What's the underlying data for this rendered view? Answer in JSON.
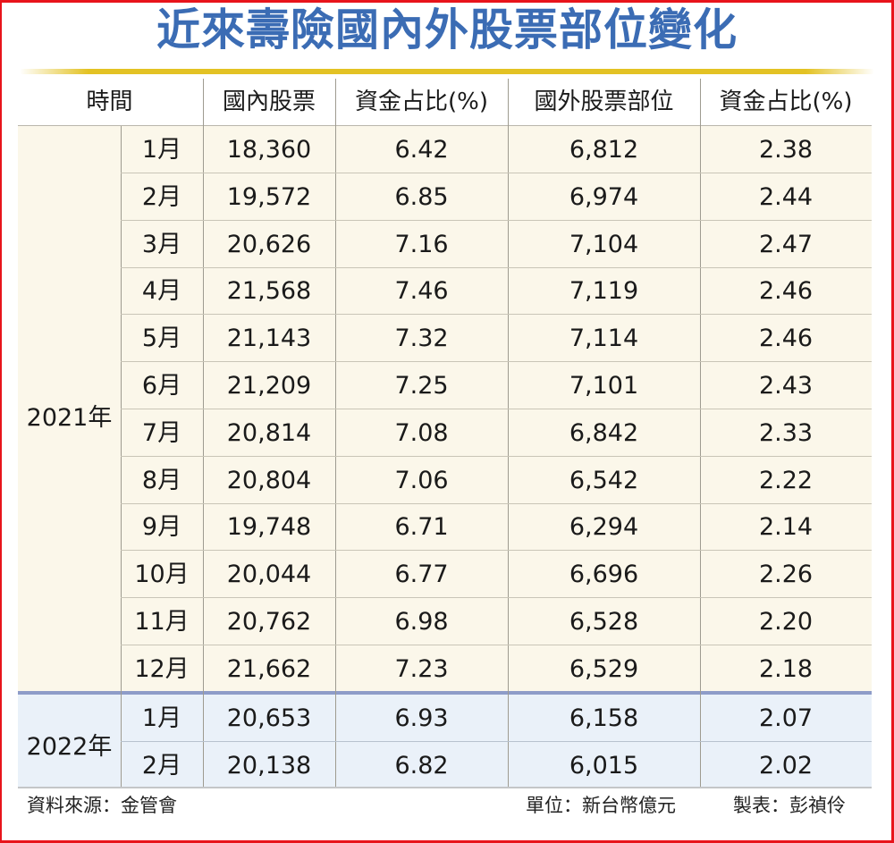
{
  "title": "近來壽險國內外股票部位變化",
  "colors": {
    "title": "#3b6cb4",
    "accent_bar": "#e3c224",
    "body_2021_bg": "#fbf7ea",
    "body_2022_bg": "#eaf1f9",
    "divider_2022": "#8e9cc8",
    "frame": "#e8141b"
  },
  "table": {
    "headers": [
      "時間",
      "國內股票",
      "資金占比(%)",
      "國外股票部位",
      "資金占比(%)"
    ],
    "groups": [
      {
        "year": "2021年",
        "rows": [
          {
            "month": "1月",
            "domestic": "18,360",
            "domestic_pct": "6.42",
            "foreign": "6,812",
            "foreign_pct": "2.38"
          },
          {
            "month": "2月",
            "domestic": "19,572",
            "domestic_pct": "6.85",
            "foreign": "6,974",
            "foreign_pct": "2.44"
          },
          {
            "month": "3月",
            "domestic": "20,626",
            "domestic_pct": "7.16",
            "foreign": "7,104",
            "foreign_pct": "2.47"
          },
          {
            "month": "4月",
            "domestic": "21,568",
            "domestic_pct": "7.46",
            "foreign": "7,119",
            "foreign_pct": "2.46"
          },
          {
            "month": "5月",
            "domestic": "21,143",
            "domestic_pct": "7.32",
            "foreign": "7,114",
            "foreign_pct": "2.46"
          },
          {
            "month": "6月",
            "domestic": "21,209",
            "domestic_pct": "7.25",
            "foreign": "7,101",
            "foreign_pct": "2.43"
          },
          {
            "month": "7月",
            "domestic": "20,814",
            "domestic_pct": "7.08",
            "foreign": "6,842",
            "foreign_pct": "2.33"
          },
          {
            "month": "8月",
            "domestic": "20,804",
            "domestic_pct": "7.06",
            "foreign": "6,542",
            "foreign_pct": "2.22"
          },
          {
            "month": "9月",
            "domestic": "19,748",
            "domestic_pct": "6.71",
            "foreign": "6,294",
            "foreign_pct": "2.14"
          },
          {
            "month": "10月",
            "domestic": "20,044",
            "domestic_pct": "6.77",
            "foreign": "6,696",
            "foreign_pct": "2.26"
          },
          {
            "month": "11月",
            "domestic": "20,762",
            "domestic_pct": "6.98",
            "foreign": "6,528",
            "foreign_pct": "2.20"
          },
          {
            "month": "12月",
            "domestic": "21,662",
            "domestic_pct": "7.23",
            "foreign": "6,529",
            "foreign_pct": "2.18"
          }
        ]
      },
      {
        "year": "2022年",
        "rows": [
          {
            "month": "1月",
            "domestic": "20,653",
            "domestic_pct": "6.93",
            "foreign": "6,158",
            "foreign_pct": "2.07"
          },
          {
            "month": "2月",
            "domestic": "20,138",
            "domestic_pct": "6.82",
            "foreign": "6,015",
            "foreign_pct": "2.02"
          }
        ]
      }
    ]
  },
  "footer": {
    "source": "資料來源：金管會",
    "unit": "單位：新台幣億元",
    "credit": "製表：彭禎伶"
  },
  "chart_data": {
    "type": "table",
    "title": "近來壽險國內外股票部位變化",
    "columns": [
      "時間",
      "國內股票",
      "資金占比(%)",
      "國外股票部位",
      "資金占比(%)"
    ],
    "unit": "新台幣億元",
    "categories": [
      "2021-1月",
      "2021-2月",
      "2021-3月",
      "2021-4月",
      "2021-5月",
      "2021-6月",
      "2021-7月",
      "2021-8月",
      "2021-9月",
      "2021-10月",
      "2021-11月",
      "2021-12月",
      "2022-1月",
      "2022-2月"
    ],
    "series": [
      {
        "name": "國內股票",
        "values": [
          18360,
          19572,
          20626,
          21568,
          21143,
          21209,
          20814,
          20804,
          19748,
          20044,
          20762,
          21662,
          20653,
          20138
        ]
      },
      {
        "name": "國內股票資金占比(%)",
        "values": [
          6.42,
          6.85,
          7.16,
          7.46,
          7.32,
          7.25,
          7.08,
          7.06,
          6.71,
          6.77,
          6.98,
          7.23,
          6.93,
          6.82
        ]
      },
      {
        "name": "國外股票部位",
        "values": [
          6812,
          6974,
          7104,
          7119,
          7114,
          7101,
          6842,
          6542,
          6294,
          6696,
          6528,
          6529,
          6158,
          6015
        ]
      },
      {
        "name": "國外股票資金占比(%)",
        "values": [
          2.38,
          2.44,
          2.47,
          2.46,
          2.46,
          2.43,
          2.33,
          2.22,
          2.14,
          2.26,
          2.2,
          2.18,
          2.07,
          2.02
        ]
      }
    ],
    "source": "金管會"
  }
}
